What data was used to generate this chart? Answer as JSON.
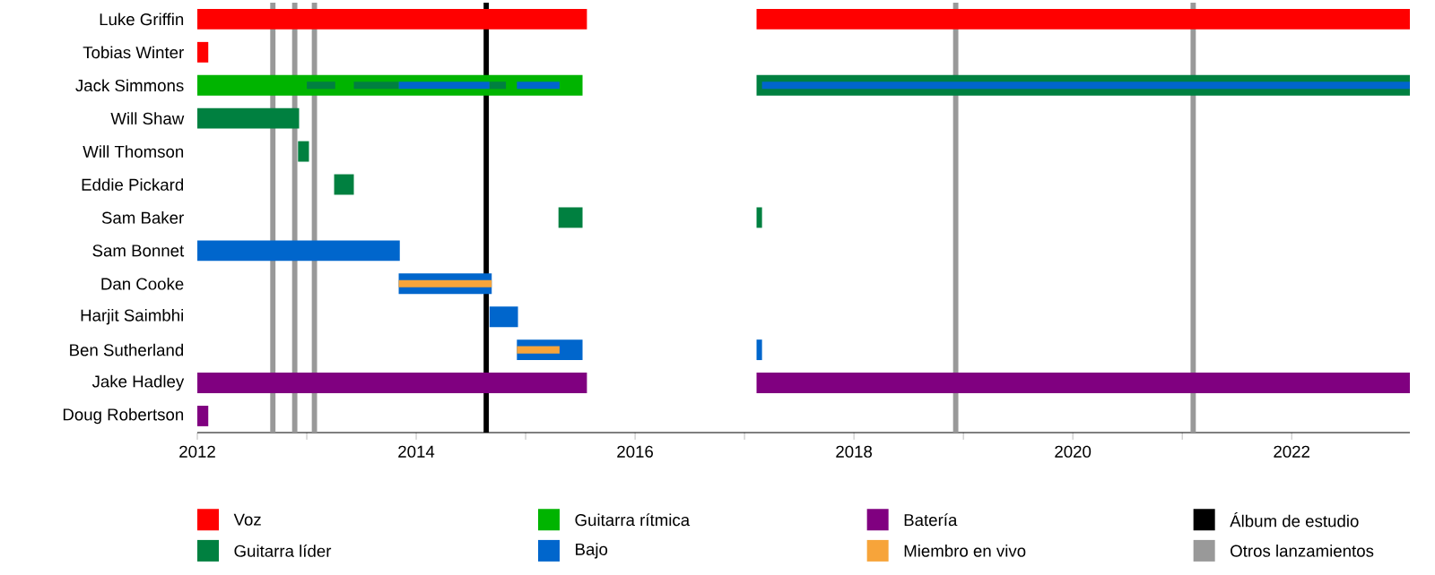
{
  "chart_data": {
    "type": "bar",
    "orientation": "horizontal",
    "legend": "bottom",
    "categories": [
      "Luke Griffin",
      "Tobias Winter",
      "Jack Simmons",
      "Will Shaw",
      "Will Thomson",
      "Eddie Pickard",
      "Sam Baker",
      "Sam Bonnet",
      "Dan Cooke",
      "Harjit Saimbhi",
      "Ben Sutherland",
      "Jake Hadley",
      "Doug Robertson"
    ],
    "xlim": [
      2012,
      2023.08
    ],
    "xticks": [
      2012,
      2014,
      2016,
      2018,
      2020,
      2022
    ],
    "series": [
      {
        "name": "Voz",
        "color": "#ff0000",
        "base": [
          2012,
          2012,
          null,
          null,
          null,
          null,
          null,
          null,
          null,
          null,
          null,
          null,
          null
        ],
        "values": [
          3.56,
          0.1,
          null,
          null,
          null,
          null,
          null,
          null,
          null,
          null,
          null,
          null,
          null
        ]
      },
      {
        "color": "#ff0000",
        "base": [
          2017.11,
          null,
          null,
          null,
          null,
          null,
          null,
          null,
          null,
          null,
          null,
          null,
          null
        ],
        "values": [
          5.97,
          null,
          null,
          null,
          null,
          null,
          null,
          null,
          null,
          null,
          null,
          null,
          null
        ]
      },
      {
        "name": "Guitarra líder",
        "color": "#008040",
        "base": [
          null,
          null,
          2013.0,
          2012,
          2012.92,
          2013.25,
          2015.3,
          null,
          null,
          null,
          null,
          null,
          null
        ],
        "values": [
          null,
          null,
          0.26,
          0.93,
          0.1,
          0.18,
          0.22,
          null,
          null,
          null,
          null,
          null,
          null
        ]
      },
      {
        "color": "#008040",
        "base": [
          null,
          null,
          2013.43,
          null,
          null,
          null,
          2017.11,
          null,
          null,
          null,
          null,
          null,
          null
        ],
        "values": [
          null,
          null,
          0.41,
          null,
          null,
          null,
          0.05,
          null,
          null,
          null,
          null,
          null,
          null
        ]
      },
      {
        "color": "#008040",
        "base": [
          null,
          null,
          2014.67,
          null,
          null,
          null,
          null,
          null,
          null,
          null,
          null,
          null,
          null
        ],
        "values": [
          null,
          null,
          0.15,
          null,
          null,
          null,
          null,
          null,
          null,
          null,
          null,
          null,
          null
        ]
      },
      {
        "color": "#008040",
        "base": [
          null,
          null,
          2017.11,
          null,
          null,
          null,
          null,
          null,
          null,
          null,
          null,
          null,
          null
        ],
        "values": [
          null,
          null,
          5.97,
          null,
          null,
          null,
          null,
          null,
          null,
          null,
          null,
          null,
          null
        ]
      },
      {
        "name": "Guitarra rítmica",
        "color": "#00b400",
        "base": [
          null,
          null,
          2012,
          null,
          null,
          null,
          null,
          null,
          null,
          null,
          null,
          null,
          null
        ],
        "values": [
          null,
          null,
          3.52,
          null,
          null,
          null,
          null,
          null,
          null,
          null,
          null,
          null,
          null
        ]
      },
      {
        "name": "Bajo",
        "color": "#0066cc",
        "base": [
          null,
          null,
          2013.84,
          null,
          null,
          null,
          null,
          2012,
          2013.84,
          2014.67,
          2014.92,
          null,
          null
        ],
        "values": [
          null,
          null,
          0.83,
          null,
          null,
          null,
          null,
          1.85,
          0.85,
          0.26,
          0.6,
          null,
          null
        ]
      },
      {
        "color": "#0066cc",
        "base": [
          null,
          null,
          2014.92,
          null,
          null,
          null,
          null,
          null,
          null,
          null,
          2017.11,
          null,
          null
        ],
        "values": [
          null,
          null,
          0.39,
          null,
          null,
          null,
          null,
          null,
          null,
          null,
          0.05,
          null,
          null
        ]
      },
      {
        "color": "#0066cc",
        "base": [
          null,
          null,
          2017.16,
          null,
          null,
          null,
          null,
          null,
          null,
          null,
          null,
          null,
          null
        ],
        "values": [
          null,
          null,
          5.92,
          null,
          null,
          null,
          null,
          null,
          null,
          null,
          null,
          null,
          null
        ]
      },
      {
        "name": "Batería",
        "color": "#800080",
        "base": [
          null,
          null,
          null,
          null,
          null,
          null,
          null,
          null,
          null,
          null,
          null,
          2012,
          2012
        ],
        "values": [
          null,
          null,
          null,
          null,
          null,
          null,
          null,
          null,
          null,
          null,
          null,
          3.56,
          0.1
        ]
      },
      {
        "color": "#800080",
        "base": [
          null,
          null,
          null,
          null,
          null,
          null,
          null,
          null,
          null,
          null,
          null,
          2017.11,
          null
        ],
        "values": [
          null,
          null,
          null,
          null,
          null,
          null,
          null,
          null,
          null,
          null,
          null,
          5.97,
          null
        ]
      },
      {
        "name": "Miembro en vivo",
        "color": "#f7a43a",
        "base": [
          null,
          null,
          null,
          null,
          null,
          null,
          null,
          null,
          2013.84,
          null,
          2014.92,
          null,
          null
        ],
        "values": [
          null,
          null,
          null,
          null,
          null,
          null,
          null,
          null,
          0.85,
          null,
          0.39,
          null,
          null
        ]
      }
    ],
    "ref_lines": [
      {
        "axis": "x",
        "value": 2014.64,
        "label": "Álbum de estudio",
        "color": "#000000"
      },
      {
        "axis": "x",
        "value": 2012.69,
        "label": "Otros lanzamientos",
        "color": "#999999"
      },
      {
        "axis": "x",
        "value": 2012.89,
        "color": "#999999"
      },
      {
        "axis": "x",
        "value": 2013.07,
        "color": "#999999"
      },
      {
        "axis": "x",
        "value": 2018.93,
        "color": "#999999"
      },
      {
        "axis": "x",
        "value": 2021.1,
        "color": "#999999"
      }
    ]
  }
}
